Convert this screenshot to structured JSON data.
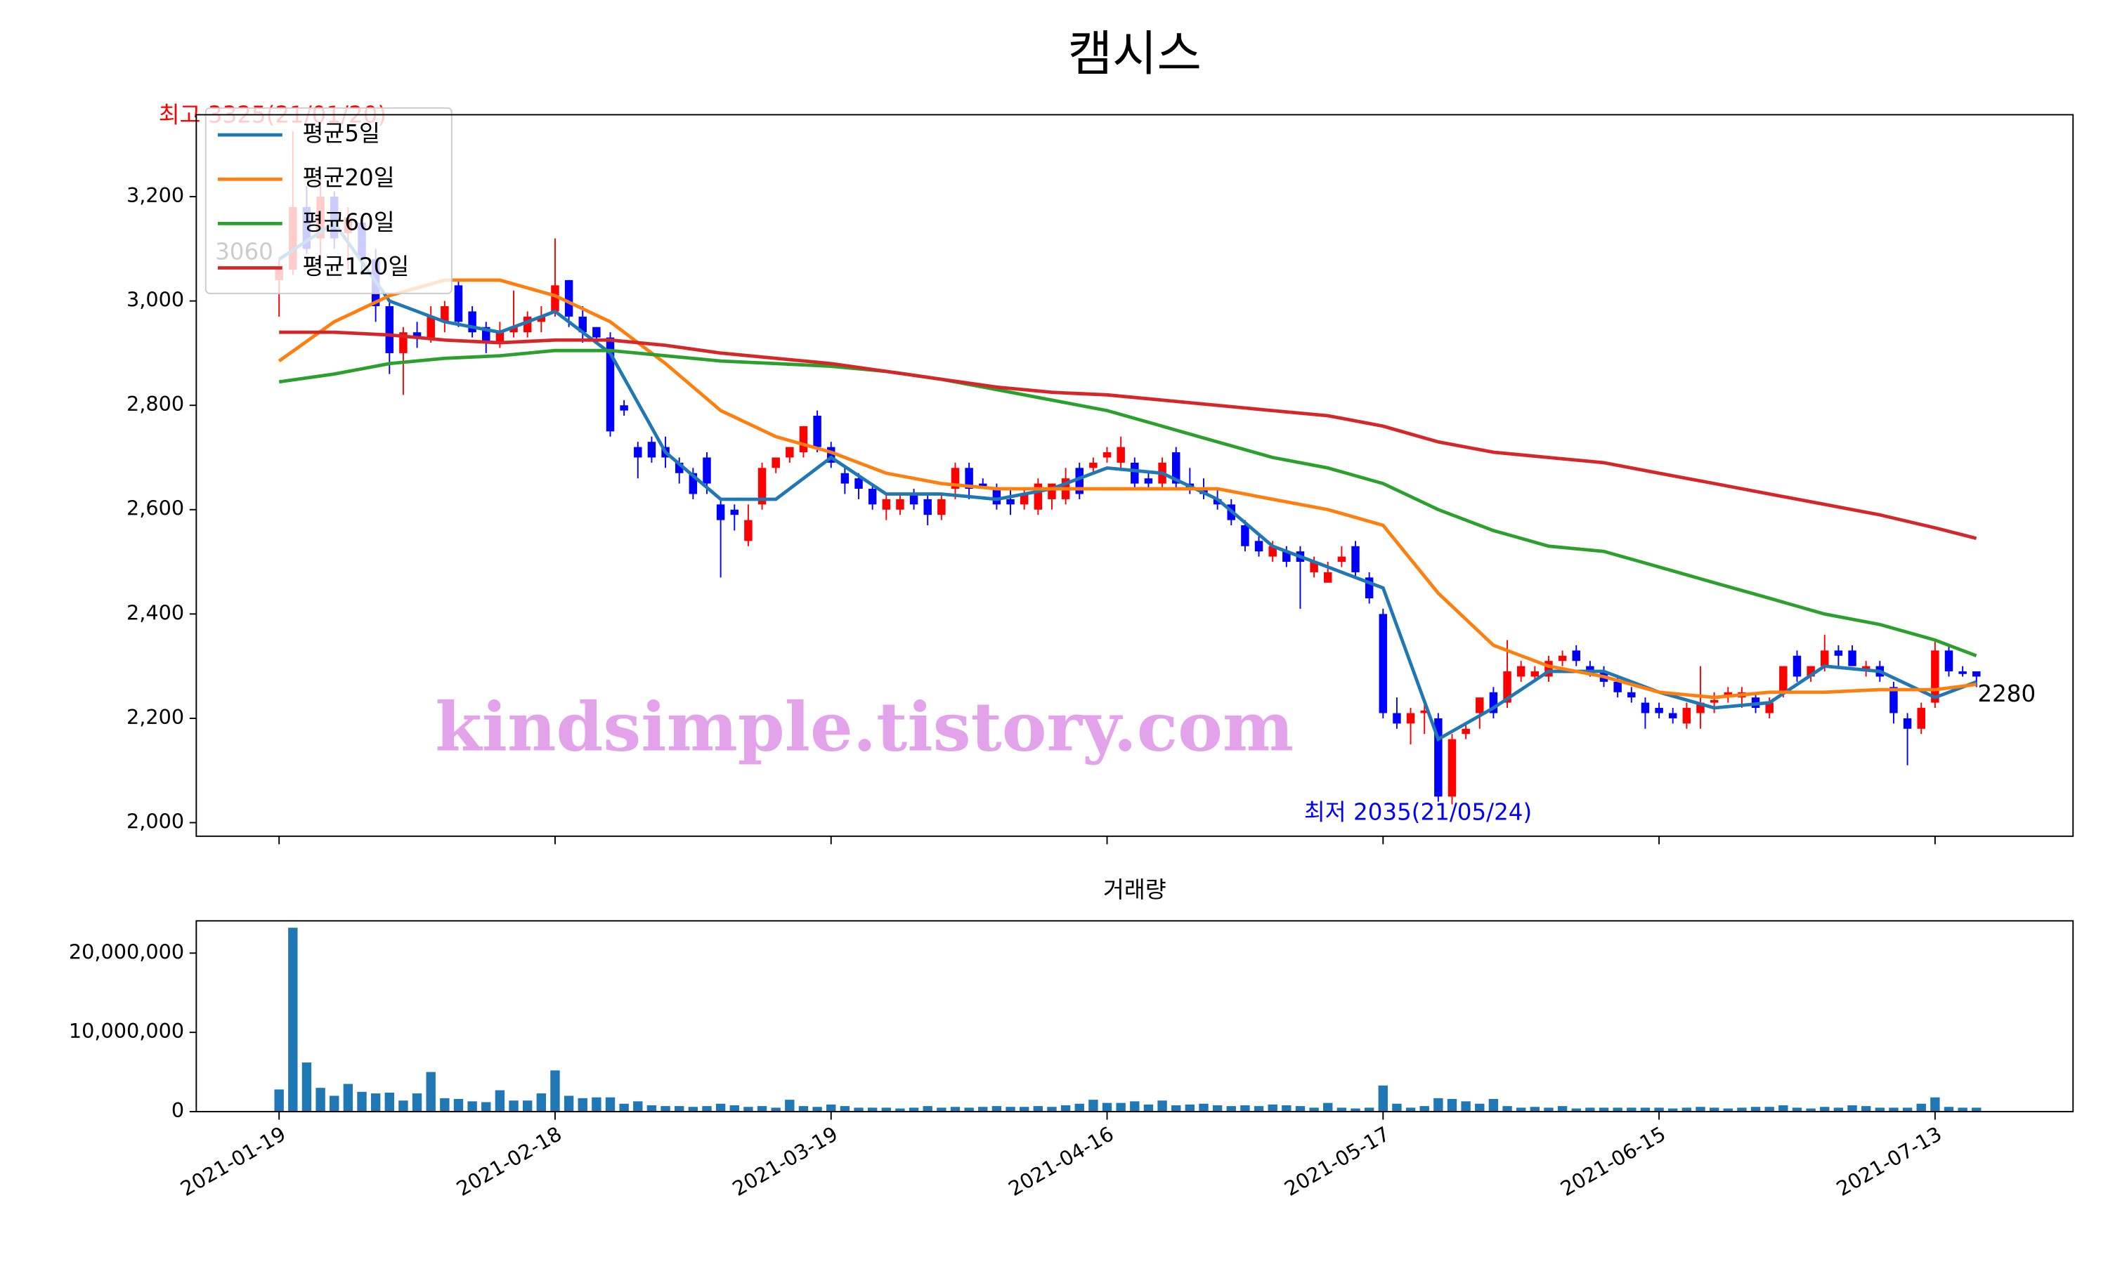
{
  "chart_data": [
    {
      "type": "candlestick",
      "title": "캠시스",
      "xlim": [
        -6,
        130
      ],
      "ylim": [
        1974,
        3357
      ],
      "yticks": [
        {
          "value": 2000,
          "label": "2,000"
        },
        {
          "value": 2200,
          "label": "2,200"
        },
        {
          "value": 2400,
          "label": "2,400"
        },
        {
          "value": 2600,
          "label": "2,600"
        },
        {
          "value": 2800,
          "label": "2,800"
        },
        {
          "value": 3000,
          "label": "3,000"
        },
        {
          "value": 3200,
          "label": "3,200"
        }
      ],
      "up_color": "#ff0000",
      "down_color": "#0000ff",
      "legend": "upper left",
      "open": [
        3040,
        3060,
        3180,
        3120,
        3200,
        3130,
        3150,
        3080,
        2990,
        2900,
        2940,
        2930,
        2960,
        3030,
        2980,
        2950,
        2920,
        2940,
        2940,
        2960,
        2980,
        3040,
        2970,
        2950,
        2930,
        2800,
        2720,
        2730,
        2720,
        2690,
        2670,
        2700,
        2610,
        2600,
        2540,
        2610,
        2680,
        2700,
        2710,
        2780,
        2720,
        2670,
        2660,
        2640,
        2600,
        2600,
        2630,
        2620,
        2590,
        2640,
        2680,
        2650,
        2640,
        2620,
        2610,
        2600,
        2620,
        2620,
        2680,
        2680,
        2700,
        2690,
        2690,
        2660,
        2650,
        2710,
        2650,
        2640,
        2620,
        2610,
        2570,
        2540,
        2510,
        2520,
        2520,
        2480,
        2460,
        2500,
        2530,
        2470,
        2400,
        2210,
        2190,
        2210,
        2200,
        2050,
        2170,
        2210,
        2250,
        2230,
        2280,
        2280,
        2280,
        2310,
        2330,
        2300,
        2290,
        2270,
        2250,
        2230,
        2220,
        2210,
        2190,
        2210,
        2230,
        2240,
        2240,
        2240,
        2210,
        2250,
        2320,
        2280,
        2300,
        2330,
        2330,
        2290,
        2300,
        2260,
        2200,
        2180,
        2230,
        2330,
        2290,
        2290
      ],
      "high": [
        3080,
        3325,
        3220,
        3240,
        3210,
        3180,
        3160,
        3100,
        3000,
        2950,
        2960,
        2990,
        3000,
        3040,
        2990,
        2960,
        2960,
        3020,
        2980,
        2990,
        3120,
        3040,
        2990,
        2950,
        2940,
        2810,
        2730,
        2740,
        2740,
        2700,
        2680,
        2710,
        2620,
        2610,
        2610,
        2690,
        2700,
        2720,
        2760,
        2790,
        2730,
        2680,
        2670,
        2650,
        2630,
        2630,
        2640,
        2630,
        2630,
        2690,
        2690,
        2660,
        2650,
        2640,
        2640,
        2660,
        2650,
        2680,
        2690,
        2700,
        2720,
        2740,
        2700,
        2670,
        2700,
        2720,
        2680,
        2660,
        2640,
        2620,
        2580,
        2550,
        2540,
        2530,
        2530,
        2510,
        2500,
        2530,
        2540,
        2480,
        2410,
        2240,
        2220,
        2230,
        2210,
        2170,
        2190,
        2240,
        2260,
        2350,
        2310,
        2300,
        2320,
        2330,
        2340,
        2310,
        2300,
        2280,
        2260,
        2240,
        2230,
        2220,
        2230,
        2300,
        2250,
        2260,
        2260,
        2250,
        2240,
        2300,
        2330,
        2300,
        2360,
        2340,
        2340,
        2310,
        2310,
        2270,
        2210,
        2230,
        2350,
        2340,
        2300,
        2290
      ],
      "low": [
        2970,
        3050,
        3090,
        3080,
        3100,
        3060,
        3050,
        2960,
        2860,
        2820,
        2910,
        2920,
        2940,
        2950,
        2930,
        2900,
        2910,
        2930,
        2930,
        2940,
        2970,
        2950,
        2920,
        2920,
        2740,
        2780,
        2660,
        2690,
        2680,
        2650,
        2620,
        2630,
        2470,
        2560,
        2530,
        2600,
        2670,
        2690,
        2700,
        2710,
        2680,
        2630,
        2620,
        2600,
        2580,
        2590,
        2600,
        2570,
        2580,
        2620,
        2620,
        2640,
        2600,
        2590,
        2600,
        2590,
        2600,
        2610,
        2620,
        2670,
        2690,
        2680,
        2640,
        2640,
        2640,
        2640,
        2630,
        2620,
        2600,
        2570,
        2520,
        2510,
        2500,
        2490,
        2410,
        2470,
        2460,
        2490,
        2470,
        2420,
        2200,
        2180,
        2150,
        2170,
        2040,
        2035,
        2160,
        2180,
        2200,
        2220,
        2270,
        2270,
        2270,
        2300,
        2300,
        2280,
        2260,
        2240,
        2230,
        2180,
        2200,
        2190,
        2180,
        2180,
        2210,
        2230,
        2220,
        2210,
        2200,
        2240,
        2270,
        2270,
        2290,
        2300,
        2300,
        2280,
        2270,
        2190,
        2110,
        2170,
        2220,
        2280,
        2280,
        2260
      ],
      "close": [
        3060,
        3180,
        3100,
        3200,
        3120,
        3160,
        3080,
        2990,
        2900,
        2940,
        2930,
        2970,
        2990,
        2960,
        2940,
        2920,
        2940,
        2950,
        2970,
        2970,
        3030,
        2970,
        2940,
        2930,
        2750,
        2790,
        2700,
        2700,
        2700,
        2670,
        2630,
        2650,
        2580,
        2590,
        2580,
        2680,
        2700,
        2720,
        2760,
        2720,
        2690,
        2650,
        2640,
        2610,
        2620,
        2620,
        2610,
        2590,
        2620,
        2680,
        2640,
        2645,
        2610,
        2610,
        2630,
        2650,
        2650,
        2660,
        2630,
        2690,
        2710,
        2720,
        2650,
        2650,
        2690,
        2650,
        2640,
        2630,
        2610,
        2580,
        2530,
        2520,
        2530,
        2500,
        2500,
        2500,
        2480,
        2510,
        2480,
        2430,
        2210,
        2190,
        2210,
        2215,
        2050,
        2160,
        2180,
        2240,
        2210,
        2290,
        2300,
        2290,
        2310,
        2320,
        2310,
        2290,
        2270,
        2250,
        2240,
        2210,
        2210,
        2200,
        2220,
        2230,
        2235,
        2250,
        2250,
        2220,
        2230,
        2300,
        2280,
        2300,
        2330,
        2320,
        2300,
        2300,
        2280,
        2210,
        2180,
        2220,
        2330,
        2290,
        2285,
        2280
      ],
      "series": [
        {
          "name": "평균5일",
          "color": "#1f77b4",
          "x": [
            0,
            4,
            8,
            12,
            16,
            20,
            24,
            28,
            32,
            36,
            40,
            44,
            48,
            52,
            56,
            60,
            64,
            68,
            72,
            76,
            80,
            84,
            88,
            92,
            96,
            100,
            104,
            108,
            112,
            116,
            120,
            123
          ],
          "values": [
            3080,
            3150,
            3000,
            2960,
            2940,
            2980,
            2900,
            2710,
            2620,
            2620,
            2700,
            2630,
            2630,
            2620,
            2640,
            2680,
            2670,
            2620,
            2530,
            2490,
            2450,
            2160,
            2220,
            2290,
            2290,
            2250,
            2220,
            2230,
            2300,
            2290,
            2240,
            2270
          ]
        },
        {
          "name": "평균20일",
          "color": "#ff7f0e",
          "x": [
            0,
            4,
            8,
            12,
            16,
            20,
            24,
            28,
            32,
            36,
            40,
            44,
            48,
            52,
            56,
            60,
            64,
            68,
            72,
            76,
            80,
            84,
            88,
            92,
            96,
            100,
            104,
            108,
            112,
            116,
            120,
            123
          ],
          "values": [
            2885,
            2960,
            3010,
            3040,
            3040,
            3010,
            2960,
            2880,
            2790,
            2740,
            2710,
            2670,
            2650,
            2640,
            2640,
            2640,
            2640,
            2640,
            2620,
            2600,
            2570,
            2440,
            2340,
            2300,
            2280,
            2250,
            2240,
            2250,
            2250,
            2255,
            2255,
            2265
          ]
        },
        {
          "name": "평균60일",
          "color": "#2ca02c",
          "x": [
            0,
            4,
            8,
            12,
            16,
            20,
            24,
            28,
            32,
            36,
            40,
            44,
            48,
            52,
            56,
            60,
            64,
            68,
            72,
            76,
            80,
            84,
            88,
            92,
            96,
            100,
            104,
            108,
            112,
            116,
            120,
            123
          ],
          "values": [
            2845,
            2860,
            2880,
            2890,
            2895,
            2905,
            2905,
            2895,
            2885,
            2880,
            2875,
            2865,
            2850,
            2830,
            2810,
            2790,
            2760,
            2730,
            2700,
            2680,
            2650,
            2600,
            2560,
            2530,
            2520,
            2490,
            2460,
            2430,
            2400,
            2380,
            2350,
            2320
          ]
        },
        {
          "name": "평균120일",
          "color": "#d62728",
          "x": [
            0,
            4,
            8,
            12,
            16,
            20,
            24,
            28,
            32,
            36,
            40,
            44,
            48,
            52,
            56,
            60,
            64,
            68,
            72,
            76,
            80,
            84,
            88,
            92,
            96,
            100,
            104,
            108,
            112,
            116,
            120,
            123
          ],
          "values": [
            2940,
            2940,
            2935,
            2925,
            2920,
            2925,
            2925,
            2915,
            2900,
            2890,
            2880,
            2865,
            2850,
            2835,
            2825,
            2820,
            2810,
            2800,
            2790,
            2780,
            2760,
            2730,
            2710,
            2700,
            2690,
            2670,
            2650,
            2630,
            2610,
            2590,
            2565,
            2545
          ]
        }
      ],
      "annotations": [
        "최고 3325(21/01/20)",
        "최저 2035(21/05/24)",
        "3060",
        "2280"
      ],
      "watermark": "kindsimple.tistory.com"
    },
    {
      "type": "bar",
      "title": "거래량",
      "color": "#1f77b4",
      "xlim": [
        -6,
        130
      ],
      "ylim": [
        0,
        24070000
      ],
      "yticks": [
        0,
        {
          "value": 10000000,
          "label": "10,000,000"
        },
        {
          "value": 20000000,
          "label": "20,000,000"
        }
      ],
      "categories": [
        "2021-01-19",
        null,
        null,
        null,
        null,
        null,
        null,
        null,
        null,
        null,
        null,
        null,
        null,
        null,
        null,
        null,
        null,
        null,
        null,
        null,
        "2021-02-18",
        null,
        null,
        null,
        null,
        null,
        null,
        null,
        null,
        null,
        null,
        null,
        null,
        null,
        null,
        null,
        null,
        null,
        null,
        null,
        "2021-03-19",
        null,
        null,
        null,
        null,
        null,
        null,
        null,
        null,
        null,
        null,
        null,
        null,
        null,
        null,
        null,
        null,
        null,
        null,
        null,
        "2021-04-16",
        null,
        null,
        null,
        null,
        null,
        null,
        null,
        null,
        null,
        null,
        null,
        null,
        null,
        null,
        null,
        null,
        null,
        null,
        null,
        "2021-05-17",
        null,
        null,
        null,
        null,
        null,
        null,
        null,
        null,
        null,
        null,
        null,
        null,
        null,
        null,
        null,
        null,
        null,
        null,
        null,
        "2021-06-15",
        null,
        null,
        null,
        null,
        null,
        null,
        null,
        null,
        null,
        null,
        null,
        null,
        null,
        null,
        null,
        null,
        null,
        null,
        null,
        "2021-07-13",
        null,
        null,
        null
      ],
      "values": [
        2800000,
        23200000,
        6200000,
        3000000,
        2000000,
        3500000,
        2500000,
        2300000,
        2400000,
        1400000,
        2300000,
        5000000,
        1700000,
        1600000,
        1300000,
        1200000,
        2700000,
        1400000,
        1400000,
        2300000,
        5200000,
        2000000,
        1700000,
        1800000,
        1800000,
        1000000,
        1300000,
        800000,
        700000,
        700000,
        600000,
        700000,
        1000000,
        800000,
        600000,
        700000,
        500000,
        1500000,
        700000,
        600000,
        900000,
        700000,
        500000,
        500000,
        500000,
        400000,
        500000,
        700000,
        500000,
        600000,
        500000,
        600000,
        700000,
        600000,
        600000,
        700000,
        600000,
        800000,
        1000000,
        1500000,
        1100000,
        1100000,
        1300000,
        900000,
        1400000,
        800000,
        900000,
        1000000,
        800000,
        700000,
        800000,
        700000,
        900000,
        800000,
        700000,
        500000,
        1100000,
        500000,
        400000,
        500000,
        3300000,
        1000000,
        500000,
        700000,
        1700000,
        1600000,
        1300000,
        1000000,
        1600000,
        700000,
        500000,
        600000,
        500000,
        700000,
        400000,
        500000,
        500000,
        500000,
        500000,
        500000,
        500000,
        400000,
        500000,
        600000,
        500000,
        400000,
        500000,
        600000,
        600000,
        800000,
        500000,
        400000,
        600000,
        500000,
        800000,
        700000,
        500000,
        500000,
        500000,
        1000000,
        1800000,
        600000,
        500000,
        500000
      ]
    }
  ]
}
